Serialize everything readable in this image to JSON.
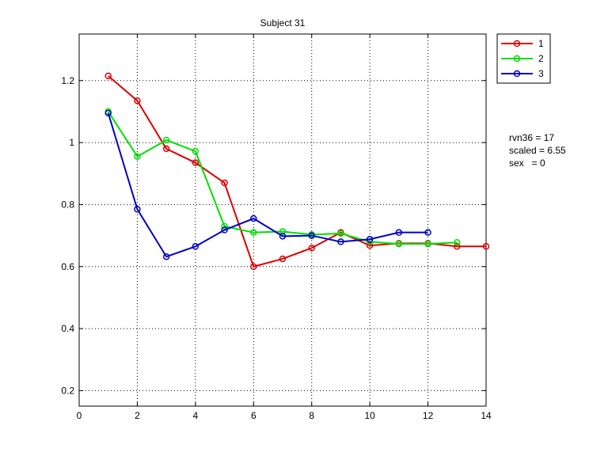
{
  "chart_data": {
    "type": "line",
    "title": "Subject 31",
    "xlabel": "",
    "ylabel": "",
    "xlim": [
      0,
      14
    ],
    "ylim": [
      0.15,
      1.35
    ],
    "xticks": [
      0,
      2,
      4,
      6,
      8,
      10,
      12,
      14
    ],
    "yticks": [
      0.2,
      0.4,
      0.6,
      0.8,
      1,
      1.2
    ],
    "xtick_labels": [
      "0",
      "2",
      "4",
      "6",
      "8",
      "10",
      "12",
      "14"
    ],
    "ytick_labels": [
      "0.2",
      "0.4",
      "0.6",
      "0.8",
      "1",
      "1.2"
    ],
    "grid": true,
    "legend_position": "outside-top-right",
    "series": [
      {
        "name": "1",
        "color": "#e00000",
        "x": [
          1,
          2,
          3,
          4,
          5,
          6,
          7,
          8,
          9,
          10,
          11,
          12,
          13,
          14
        ],
        "y": [
          1.215,
          1.135,
          0.98,
          0.935,
          0.87,
          0.6,
          0.625,
          0.66,
          0.71,
          0.668,
          0.675,
          0.675,
          0.665,
          0.665
        ]
      },
      {
        "name": "2",
        "color": "#00e000",
        "x": [
          1,
          2,
          3,
          4,
          5,
          6,
          7,
          8,
          9,
          10,
          11,
          12,
          13
        ],
        "y": [
          1.1,
          0.955,
          1.008,
          0.972,
          0.73,
          0.71,
          0.713,
          0.703,
          0.707,
          0.68,
          0.673,
          0.673,
          0.678
        ]
      },
      {
        "name": "3",
        "color": "#0000c8",
        "x": [
          1,
          2,
          3,
          4,
          5,
          6,
          7,
          8,
          9,
          10,
          11,
          12
        ],
        "y": [
          1.095,
          0.785,
          0.632,
          0.665,
          0.718,
          0.755,
          0.698,
          0.7,
          0.68,
          0.688,
          0.71,
          0.71
        ]
      }
    ],
    "annotations": [
      "rvn36 = 17",
      "scaled = 6.55",
      "sex   = 0"
    ]
  }
}
